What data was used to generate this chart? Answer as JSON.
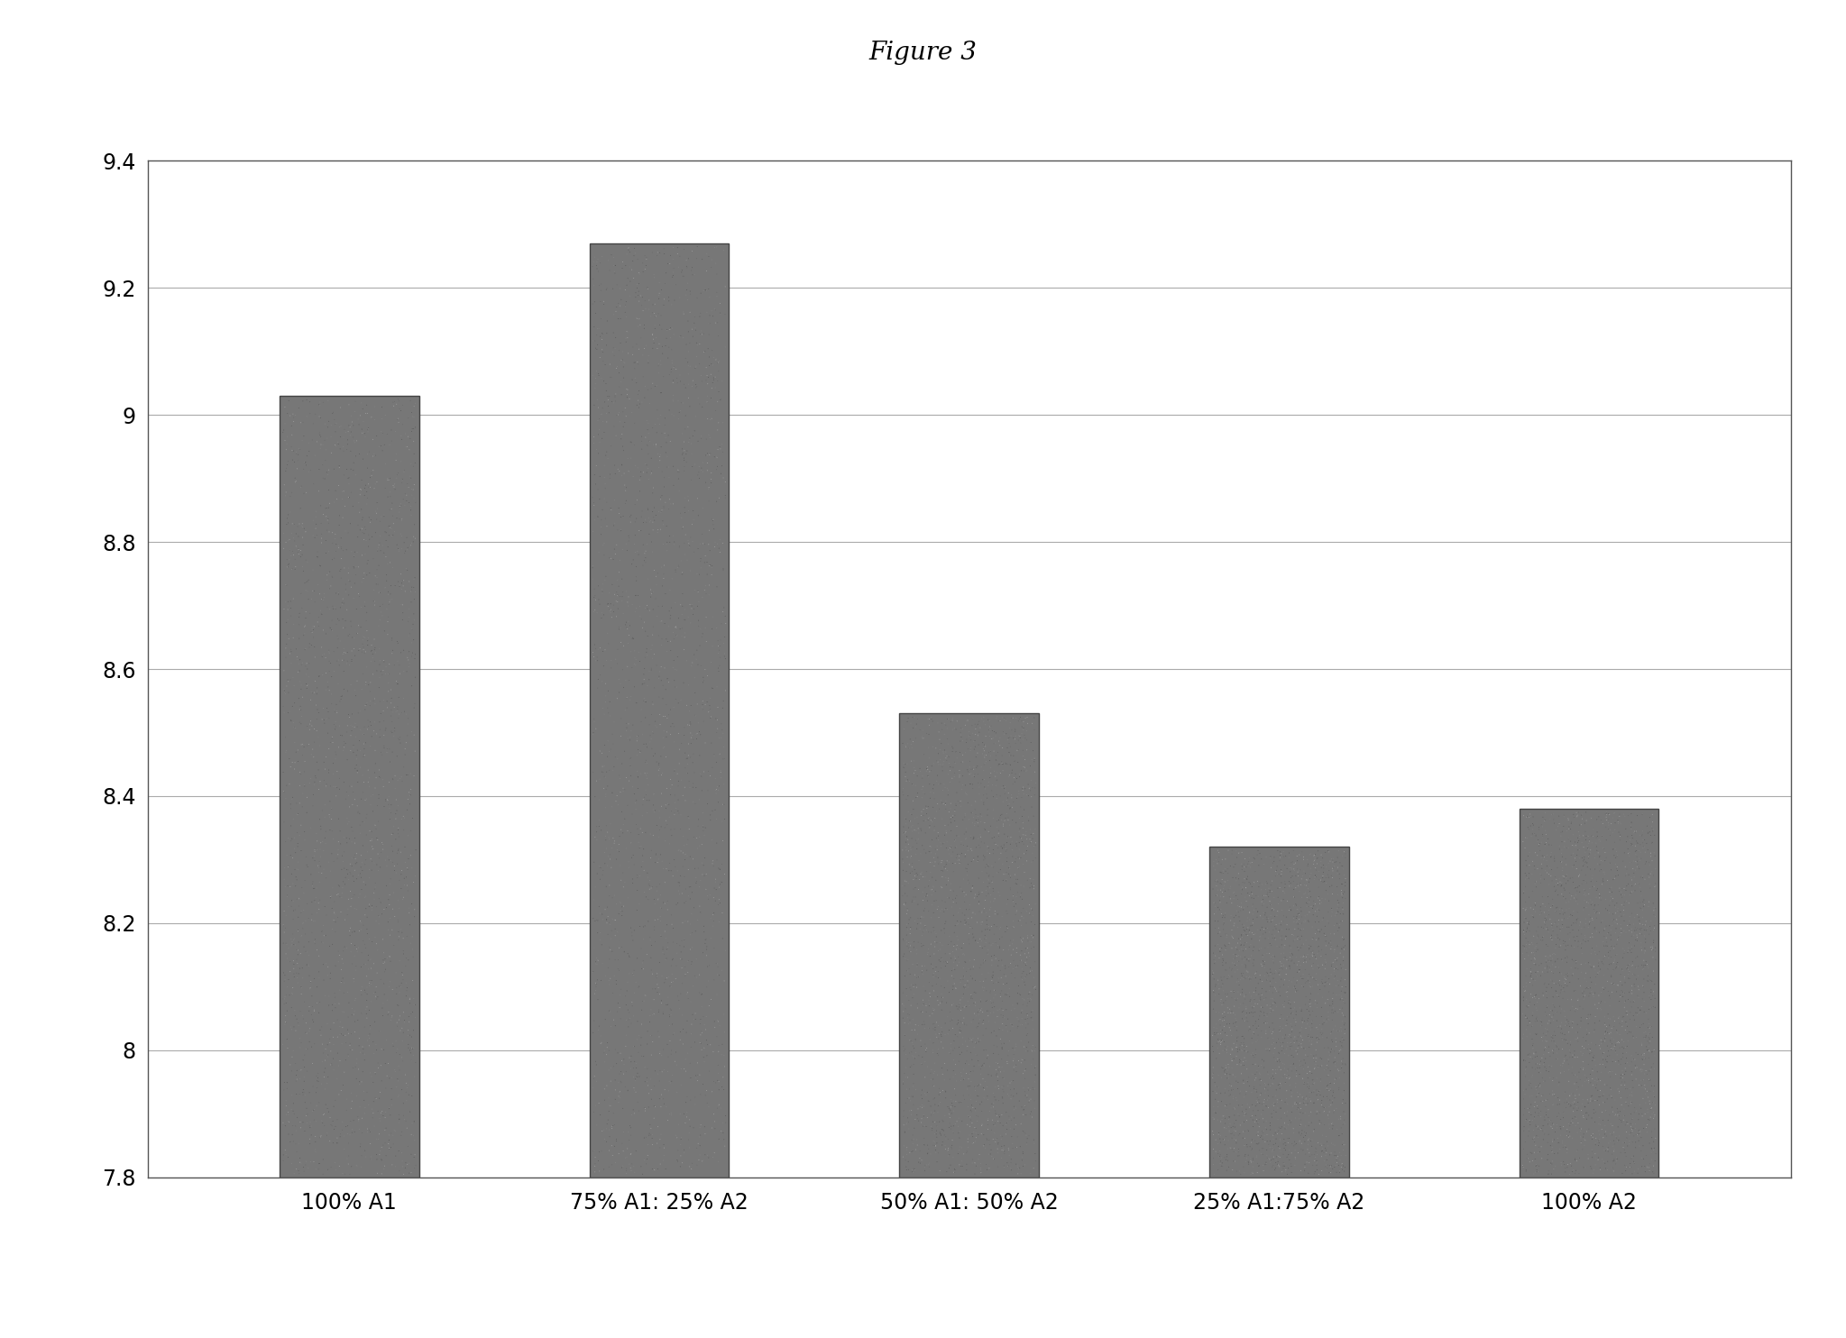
{
  "title": "Figure 3",
  "categories": [
    "100% A1",
    "75% A1: 25% A2",
    "50% A1: 50% A2",
    "25% A1:75% A2",
    "100% A2"
  ],
  "values": [
    9.03,
    9.27,
    8.53,
    8.32,
    8.38
  ],
  "bar_color": "#777777",
  "bar_edge_color": "#444444",
  "ylim": [
    7.8,
    9.4
  ],
  "yticks": [
    7.8,
    8.0,
    8.2,
    8.4,
    8.6,
    8.8,
    9.0,
    9.2,
    9.4
  ],
  "title_fontsize": 20,
  "tick_fontsize": 17,
  "background_color": "#ffffff",
  "figure_width": 20.47,
  "figure_height": 14.84,
  "bar_width": 0.45,
  "grid_color": "#aaaaaa",
  "spine_color": "#555555"
}
